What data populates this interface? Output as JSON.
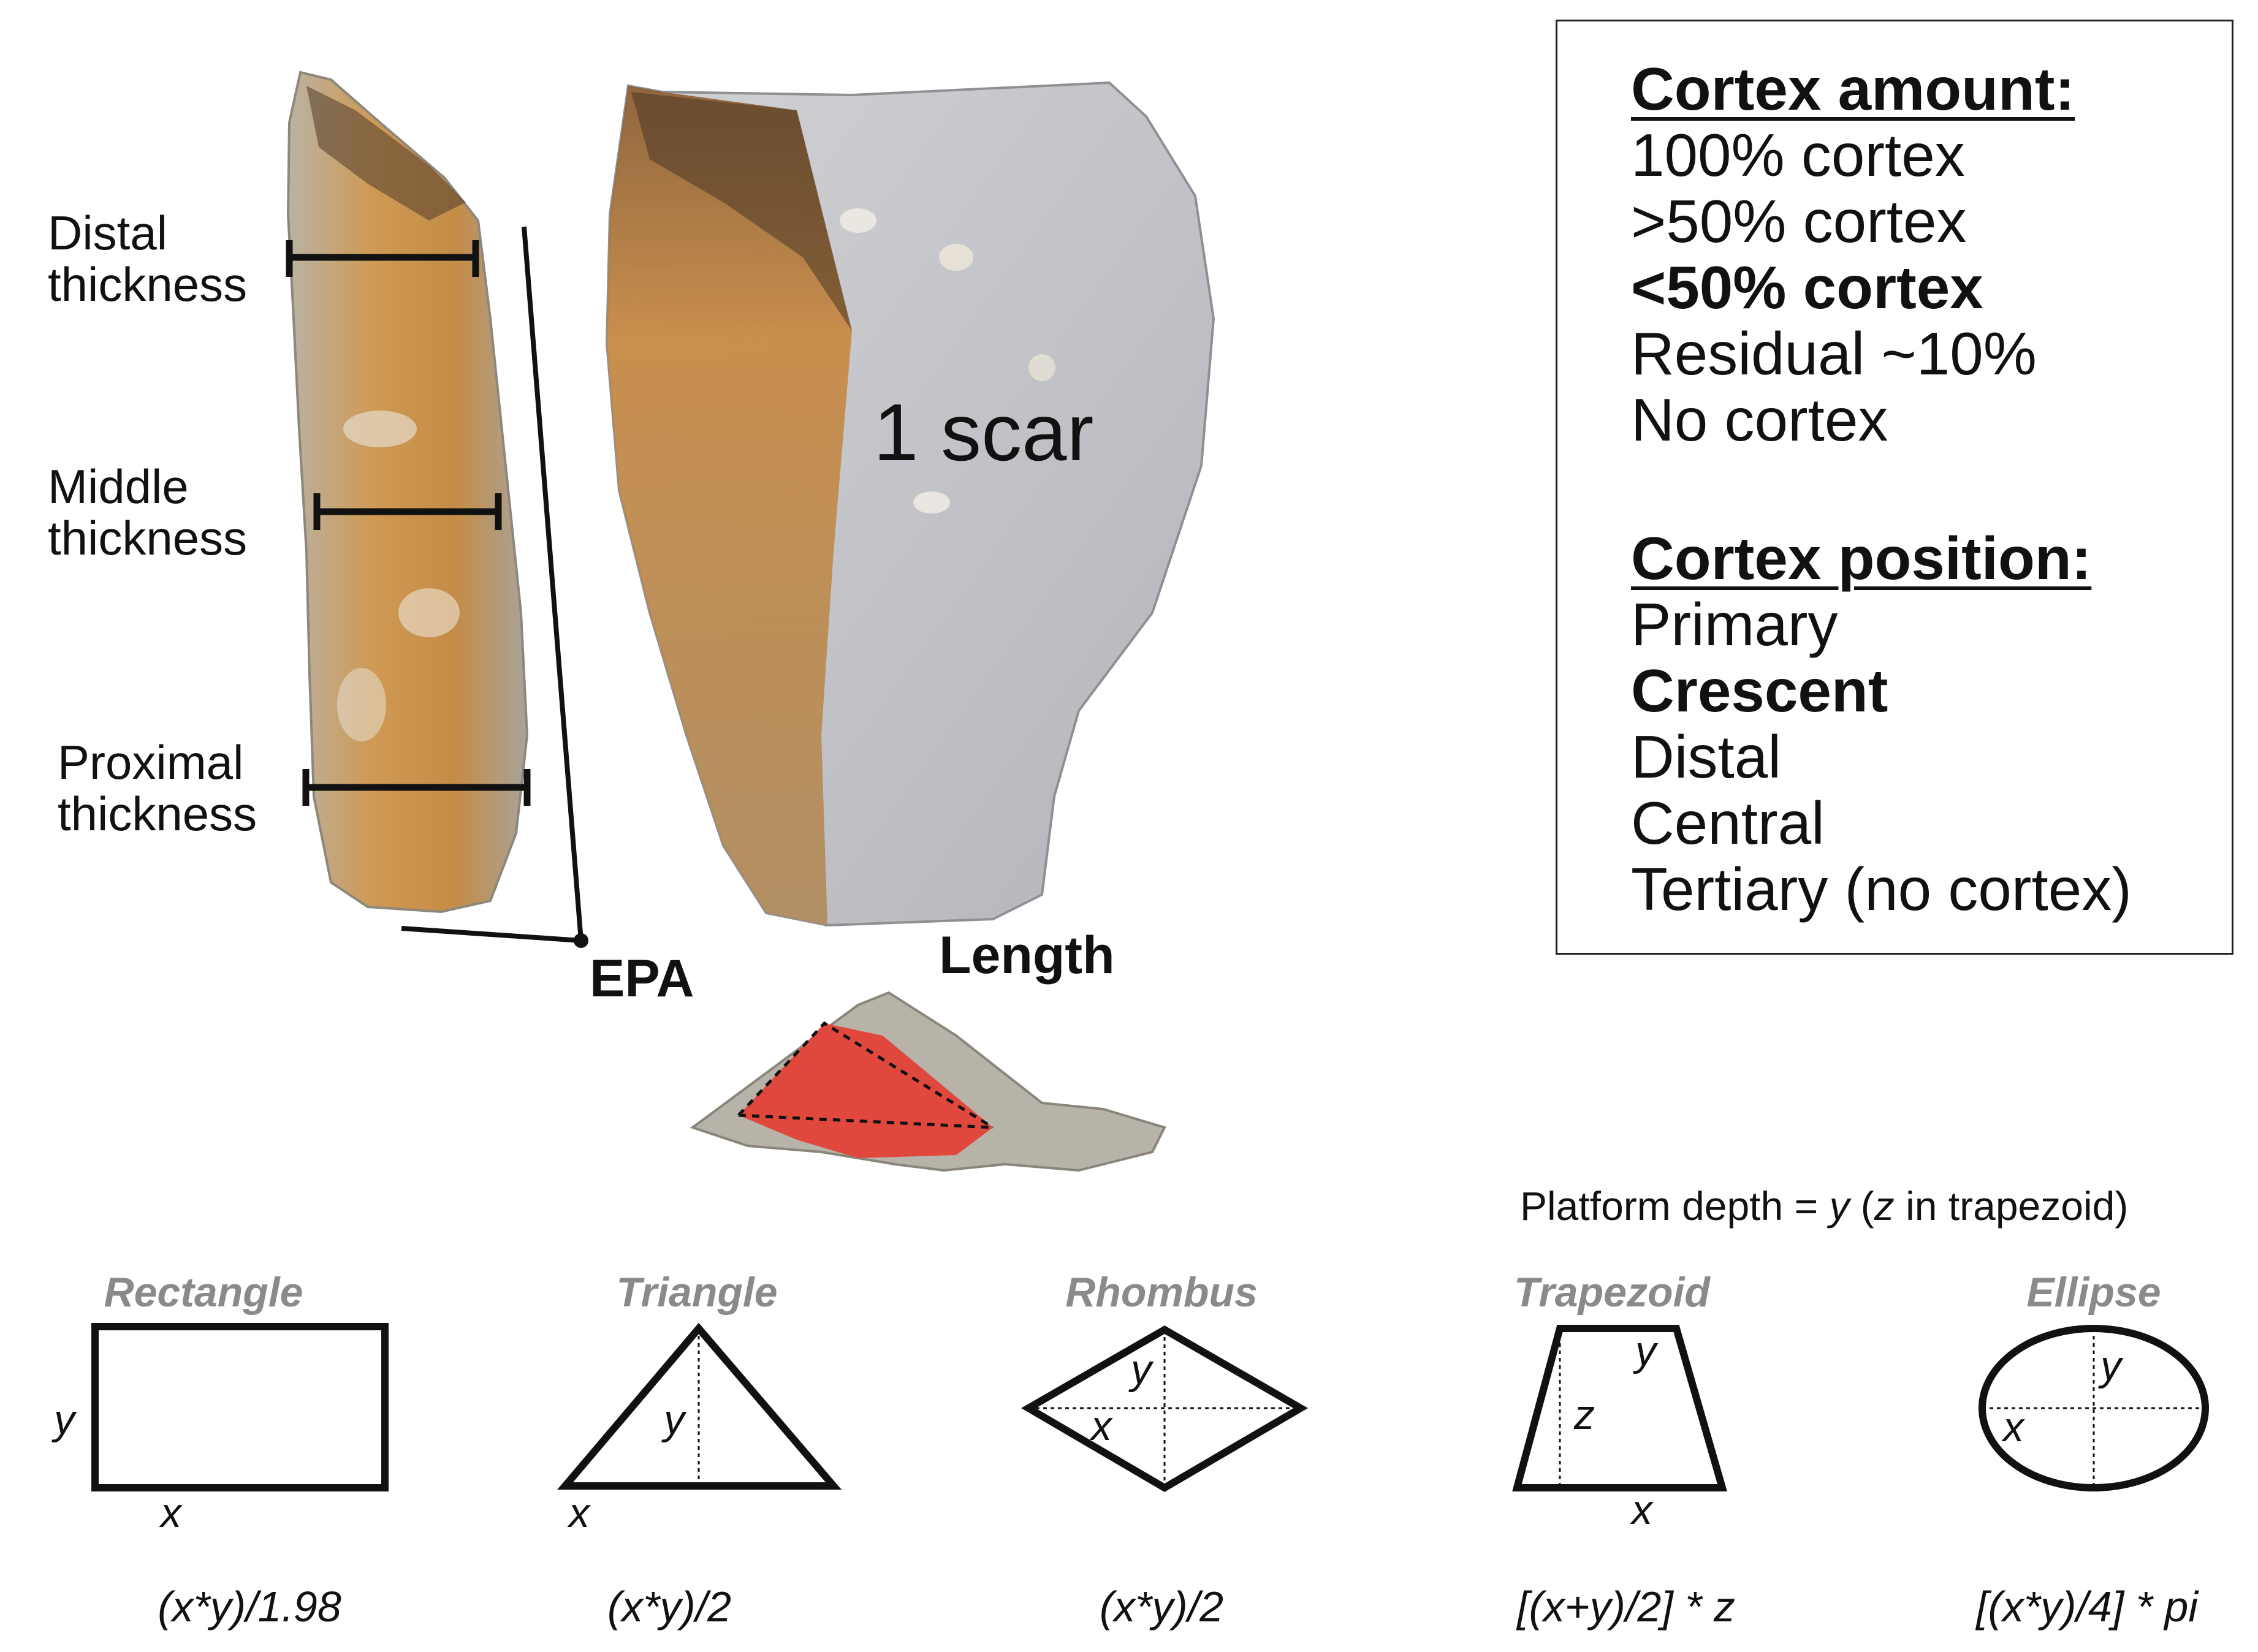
{
  "measurements": {
    "distal": "Distal\nthickness",
    "middle": "Middle\nthickness",
    "proximal": "Proximal\nthickness",
    "epa": "EPA",
    "length": "Length",
    "scar": "1 scar"
  },
  "legend": {
    "cortex_amount_title": "Cortex amount:",
    "cortex_amount": [
      {
        "label": "100% cortex",
        "bold": false
      },
      {
        "label": ">50% cortex",
        "bold": false
      },
      {
        "label": "<50% cortex",
        "bold": true
      },
      {
        "label": "Residual ~10%",
        "bold": false
      },
      {
        "label": "No cortex",
        "bold": false
      }
    ],
    "cortex_position_title": "Cortex position:",
    "cortex_position": [
      {
        "label": "Primary",
        "bold": false
      },
      {
        "label": "Crescent",
        "bold": true
      },
      {
        "label": "Distal",
        "bold": false
      },
      {
        "label": "Central",
        "bold": false
      },
      {
        "label": "Tertiary (no cortex)",
        "bold": false
      }
    ]
  },
  "platform_note": {
    "prefix": "Platform depth = ",
    "y": "y",
    "middle": " (",
    "z": "z",
    "suffix": " in trapezoid)"
  },
  "shapes": [
    {
      "title": "Rectangle",
      "formula": "(x*y)/1.98",
      "vars": [
        "y",
        "x"
      ]
    },
    {
      "title": "Triangle",
      "formula": "(x*y)/2",
      "vars": [
        "y",
        "x"
      ]
    },
    {
      "title": "Rhombus",
      "formula": "(x*y)/2",
      "vars": [
        "y",
        "x"
      ]
    },
    {
      "title": "Trapezoid",
      "formula": "[(x+y)/2] * z",
      "vars": [
        "y",
        "z",
        "x"
      ]
    },
    {
      "title": "Ellipse",
      "formula": "[(x*y)/4] * pi",
      "vars": [
        "y",
        "x"
      ]
    }
  ],
  "colors": {
    "platform_fill": "#e0483e",
    "cortex": "#c98a3a",
    "stone": "#c6c8cc",
    "shape_title": "#8a8a8a"
  }
}
